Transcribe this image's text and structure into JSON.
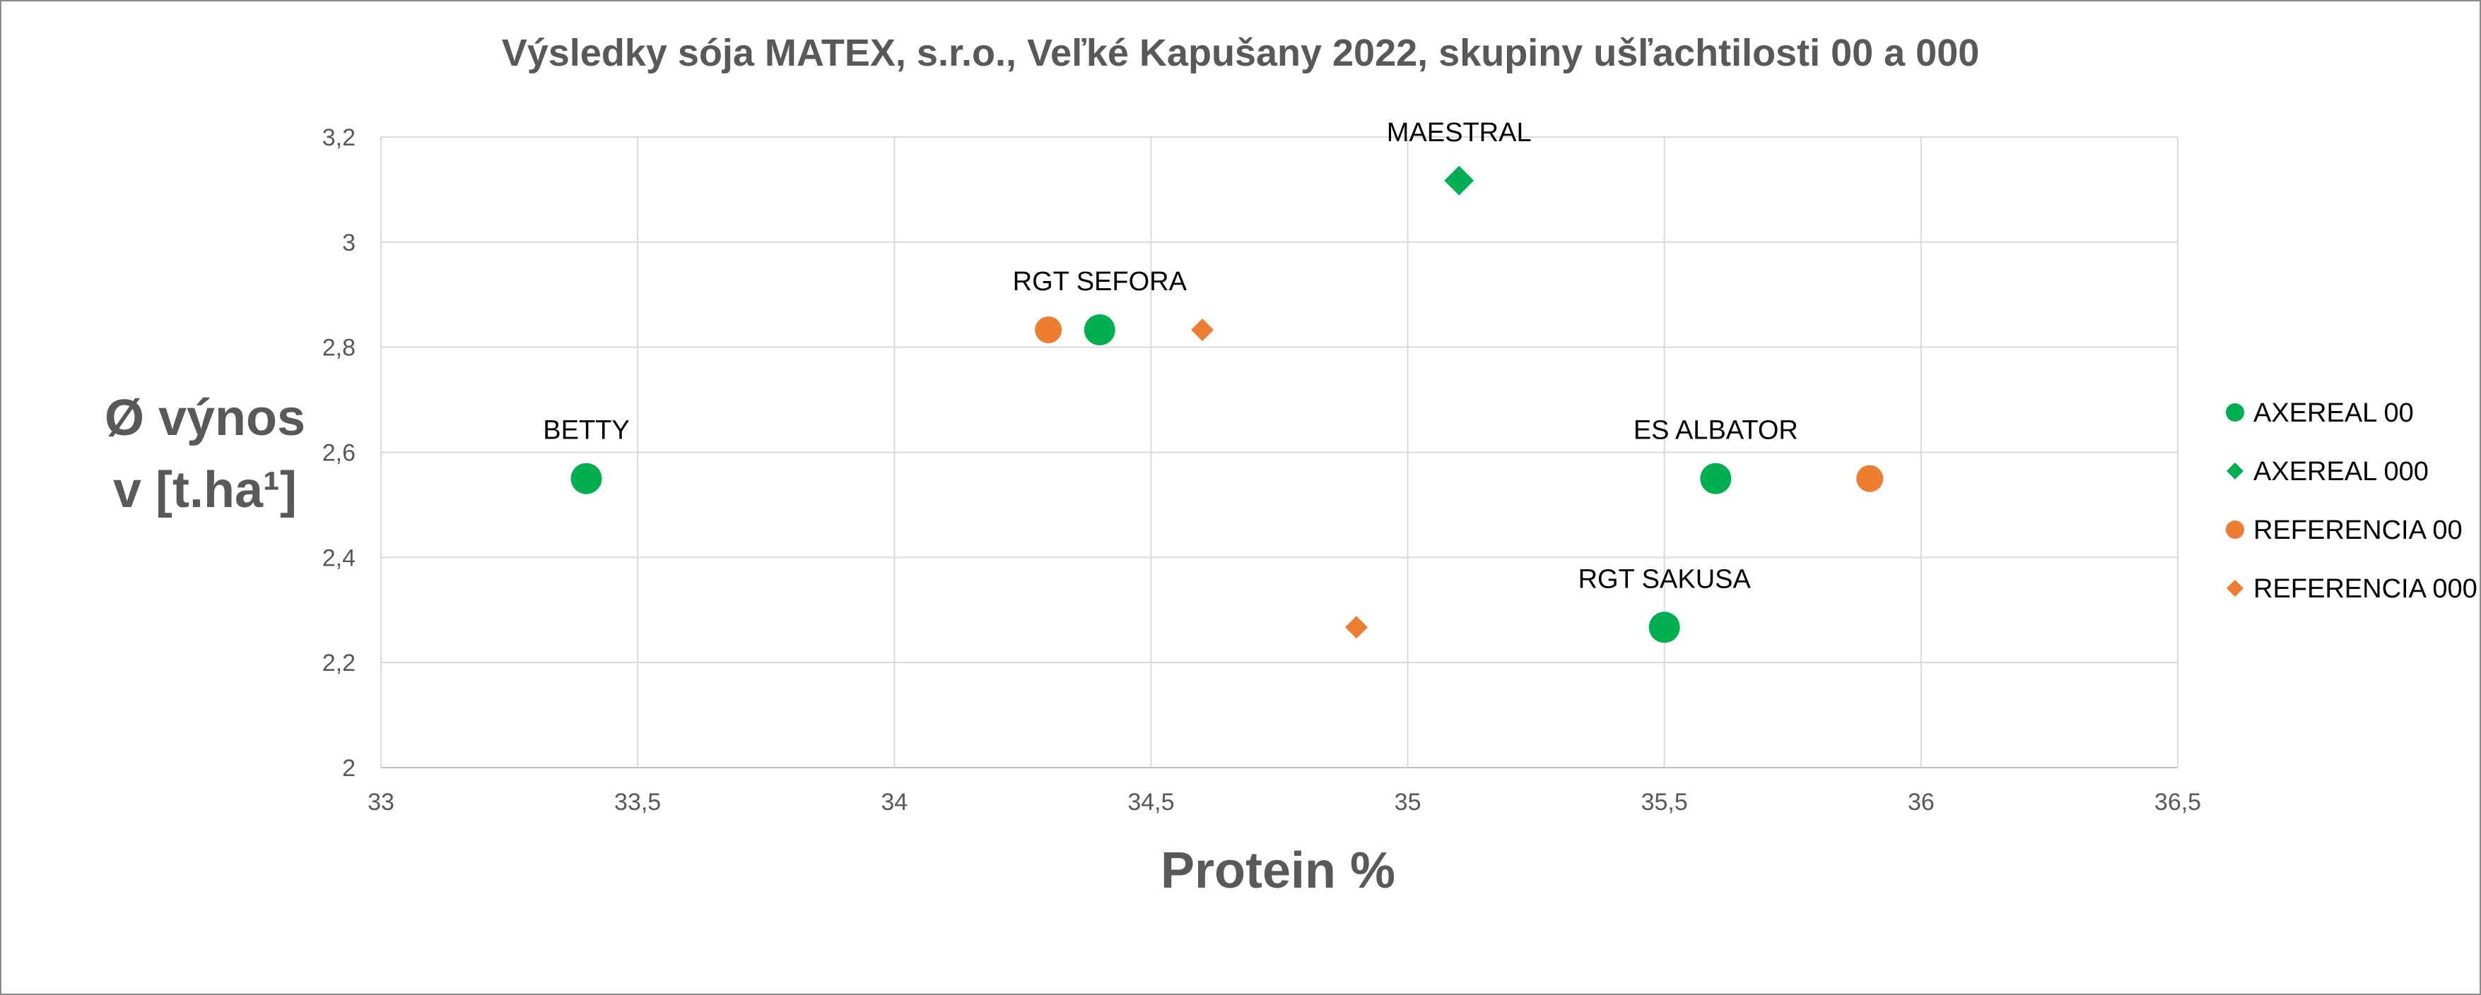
{
  "chart_data": {
    "type": "scatter",
    "title": "Výsledky sója MATEX, s.r.o., Veľké Kapušany 2022, skupiny ušľachtilosti 00 a 000",
    "xlabel": "Protein %",
    "ylabel_lines": [
      "Ø výnos",
      "v [t.ha¹]"
    ],
    "xlim": [
      33,
      36.5
    ],
    "ylim": [
      2,
      3.2
    ],
    "x_ticks": [
      33,
      33.5,
      34,
      34.5,
      35,
      35.5,
      36,
      36.5
    ],
    "x_tick_labels": [
      "33",
      "33,5",
      "34",
      "34,5",
      "35",
      "35,5",
      "36",
      "36,5"
    ],
    "y_ticks": [
      2,
      2.2,
      2.4,
      2.6,
      2.8,
      3,
      3.2
    ],
    "y_tick_labels": [
      "2",
      "2,2",
      "2,4",
      "2,6",
      "2,8",
      "3",
      "3,2"
    ],
    "grid": true,
    "legend_position": "right",
    "series": [
      {
        "name": "AXEREAL 00",
        "marker": "circle",
        "color": "#00b050",
        "points": [
          {
            "x": 33.4,
            "y": 2.55,
            "label": "BETTY"
          },
          {
            "x": 34.4,
            "y": 2.833,
            "label": "RGT SEFORA"
          },
          {
            "x": 35.6,
            "y": 2.55,
            "label": "ES ALBATOR"
          },
          {
            "x": 35.5,
            "y": 2.267,
            "label": "RGT SAKUSA"
          }
        ]
      },
      {
        "name": "AXEREAL 000",
        "marker": "diamond",
        "color": "#00b050",
        "points": [
          {
            "x": 35.1,
            "y": 3.117,
            "label": "MAESTRAL"
          }
        ]
      },
      {
        "name": "REFERENCIA 00",
        "marker": "circle",
        "color": "#ed7d31",
        "points": [
          {
            "x": 34.3,
            "y": 2.833,
            "label": ""
          },
          {
            "x": 35.9,
            "y": 2.55,
            "label": ""
          }
        ]
      },
      {
        "name": "REFERENCIA 000",
        "marker": "diamond",
        "color": "#ed7d31",
        "points": [
          {
            "x": 34.6,
            "y": 2.833,
            "label": ""
          },
          {
            "x": 34.9,
            "y": 2.267,
            "label": ""
          }
        ]
      }
    ]
  }
}
